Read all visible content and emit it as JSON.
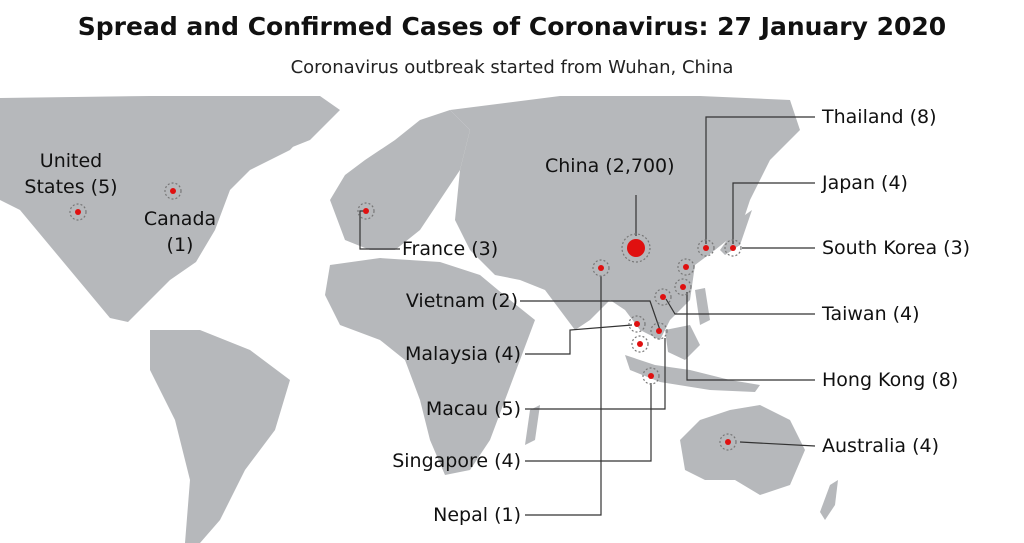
{
  "title": "Spread and Confirmed Cases of Coronavirus: 27 January 2020",
  "subtitle": "Coronavirus outbreak started from Wuhan, China",
  "locations": [
    {
      "label": "United States (5)"
    },
    {
      "label": "Canada (1)"
    },
    {
      "label": "France (3)"
    },
    {
      "label": "China (2,700)"
    },
    {
      "label": "Thailand (8)"
    },
    {
      "label": "Japan (4)"
    },
    {
      "label": "South Korea (3)"
    },
    {
      "label": "Taiwan (4)"
    },
    {
      "label": "Hong Kong (8)"
    },
    {
      "label": "Australia (4)"
    },
    {
      "label": "Vietnam (2)"
    },
    {
      "label": "Malaysia (4)"
    },
    {
      "label": "Macau (5)"
    },
    {
      "label": "Singapore (4)"
    },
    {
      "label": "Nepal (1)"
    }
  ]
}
